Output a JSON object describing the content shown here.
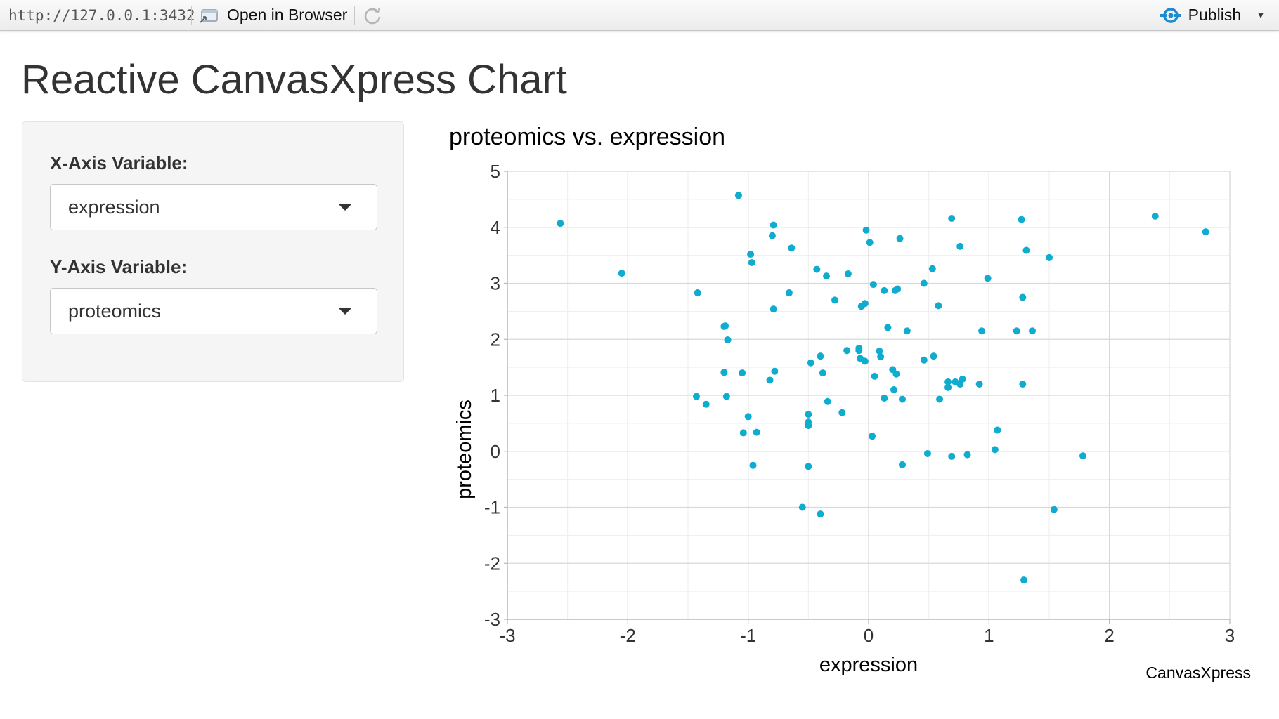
{
  "toolbar": {
    "url": "http://127.0.0.1:3432",
    "open_in_browser": "Open in Browser",
    "publish": "Publish",
    "accent_color": "#1f8bd2"
  },
  "page": {
    "title": "Reactive CanvasXpress Chart"
  },
  "controls": {
    "x_label": "X-Axis Variable:",
    "x_value": "expression",
    "y_label": "Y-Axis Variable:",
    "y_value": "proteomics"
  },
  "chart_data": {
    "type": "scatter",
    "title": "proteomics vs. expression",
    "xlabel": "expression",
    "ylabel": "proteomics",
    "xlim": [
      -3,
      3
    ],
    "ylim": [
      -3,
      5
    ],
    "xticks": [
      -3,
      -2,
      -1,
      0,
      1,
      2,
      3
    ],
    "yticks": [
      -3,
      -2,
      -1,
      0,
      1,
      2,
      3,
      4,
      5
    ],
    "grid": true,
    "point_color": "#0eaccf",
    "branding": "CanvasXpress",
    "points": [
      [
        -2.56,
        4.07
      ],
      [
        -2.05,
        3.18
      ],
      [
        -1.42,
        2.83
      ],
      [
        -1.43,
        0.98
      ],
      [
        -1.35,
        0.84
      ],
      [
        -1.2,
        2.23
      ],
      [
        -1.19,
        2.24
      ],
      [
        -1.17,
        1.99
      ],
      [
        -1.2,
        1.41
      ],
      [
        -1.18,
        0.98
      ],
      [
        -1.08,
        4.57
      ],
      [
        -1.05,
        1.4
      ],
      [
        -1.04,
        0.33
      ],
      [
        -1.0,
        0.62
      ],
      [
        -0.98,
        3.52
      ],
      [
        -0.97,
        3.37
      ],
      [
        -0.96,
        -0.25
      ],
      [
        -0.93,
        0.34
      ],
      [
        -0.8,
        3.85
      ],
      [
        -0.79,
        4.04
      ],
      [
        -0.79,
        2.54
      ],
      [
        -0.78,
        1.43
      ],
      [
        -0.82,
        1.27
      ],
      [
        -0.66,
        2.83
      ],
      [
        -0.64,
        3.63
      ],
      [
        -0.55,
        -1.0
      ],
      [
        -0.5,
        0.66
      ],
      [
        -0.5,
        0.52
      ],
      [
        -0.5,
        0.46
      ],
      [
        -0.5,
        -0.27
      ],
      [
        -0.48,
        1.58
      ],
      [
        -0.43,
        3.25
      ],
      [
        -0.4,
        1.7
      ],
      [
        -0.38,
        1.4
      ],
      [
        -0.35,
        3.13
      ],
      [
        -0.34,
        0.89
      ],
      [
        -0.4,
        -1.12
      ],
      [
        -0.28,
        2.7
      ],
      [
        -0.22,
        0.69
      ],
      [
        -0.18,
        1.8
      ],
      [
        -0.17,
        3.17
      ],
      [
        -0.08,
        1.84
      ],
      [
        -0.08,
        1.8
      ],
      [
        -0.07,
        1.66
      ],
      [
        -0.06,
        2.59
      ],
      [
        -0.03,
        1.61
      ],
      [
        -0.03,
        2.64
      ],
      [
        -0.02,
        3.95
      ],
      [
        0.01,
        3.73
      ],
      [
        0.03,
        0.27
      ],
      [
        0.04,
        2.98
      ],
      [
        0.05,
        1.34
      ],
      [
        0.09,
        1.79
      ],
      [
        0.1,
        1.69
      ],
      [
        0.13,
        2.87
      ],
      [
        0.13,
        0.95
      ],
      [
        0.16,
        2.21
      ],
      [
        0.2,
        1.46
      ],
      [
        0.21,
        1.1
      ],
      [
        0.22,
        2.87
      ],
      [
        0.23,
        1.38
      ],
      [
        0.24,
        2.9
      ],
      [
        0.26,
        3.8
      ],
      [
        0.28,
        -0.24
      ],
      [
        0.28,
        0.93
      ],
      [
        0.32,
        2.15
      ],
      [
        0.46,
        3.0
      ],
      [
        0.46,
        1.63
      ],
      [
        0.49,
        -0.04
      ],
      [
        0.53,
        3.26
      ],
      [
        0.54,
        1.7
      ],
      [
        0.58,
        2.6
      ],
      [
        0.59,
        0.93
      ],
      [
        0.66,
        1.24
      ],
      [
        0.66,
        1.14
      ],
      [
        0.69,
        4.16
      ],
      [
        0.69,
        -0.09
      ],
      [
        0.72,
        1.24
      ],
      [
        0.76,
        3.66
      ],
      [
        0.76,
        1.2
      ],
      [
        0.78,
        1.29
      ],
      [
        0.82,
        -0.06
      ],
      [
        0.92,
        1.2
      ],
      [
        0.94,
        2.15
      ],
      [
        0.99,
        3.09
      ],
      [
        1.05,
        0.03
      ],
      [
        1.07,
        0.38
      ],
      [
        1.23,
        2.15
      ],
      [
        1.27,
        4.14
      ],
      [
        1.28,
        2.75
      ],
      [
        1.28,
        1.2
      ],
      [
        1.29,
        -2.3
      ],
      [
        1.31,
        3.59
      ],
      [
        1.36,
        2.15
      ],
      [
        1.5,
        3.46
      ],
      [
        1.54,
        -1.04
      ],
      [
        1.78,
        -0.08
      ],
      [
        2.38,
        4.2
      ],
      [
        2.8,
        3.92
      ]
    ]
  }
}
